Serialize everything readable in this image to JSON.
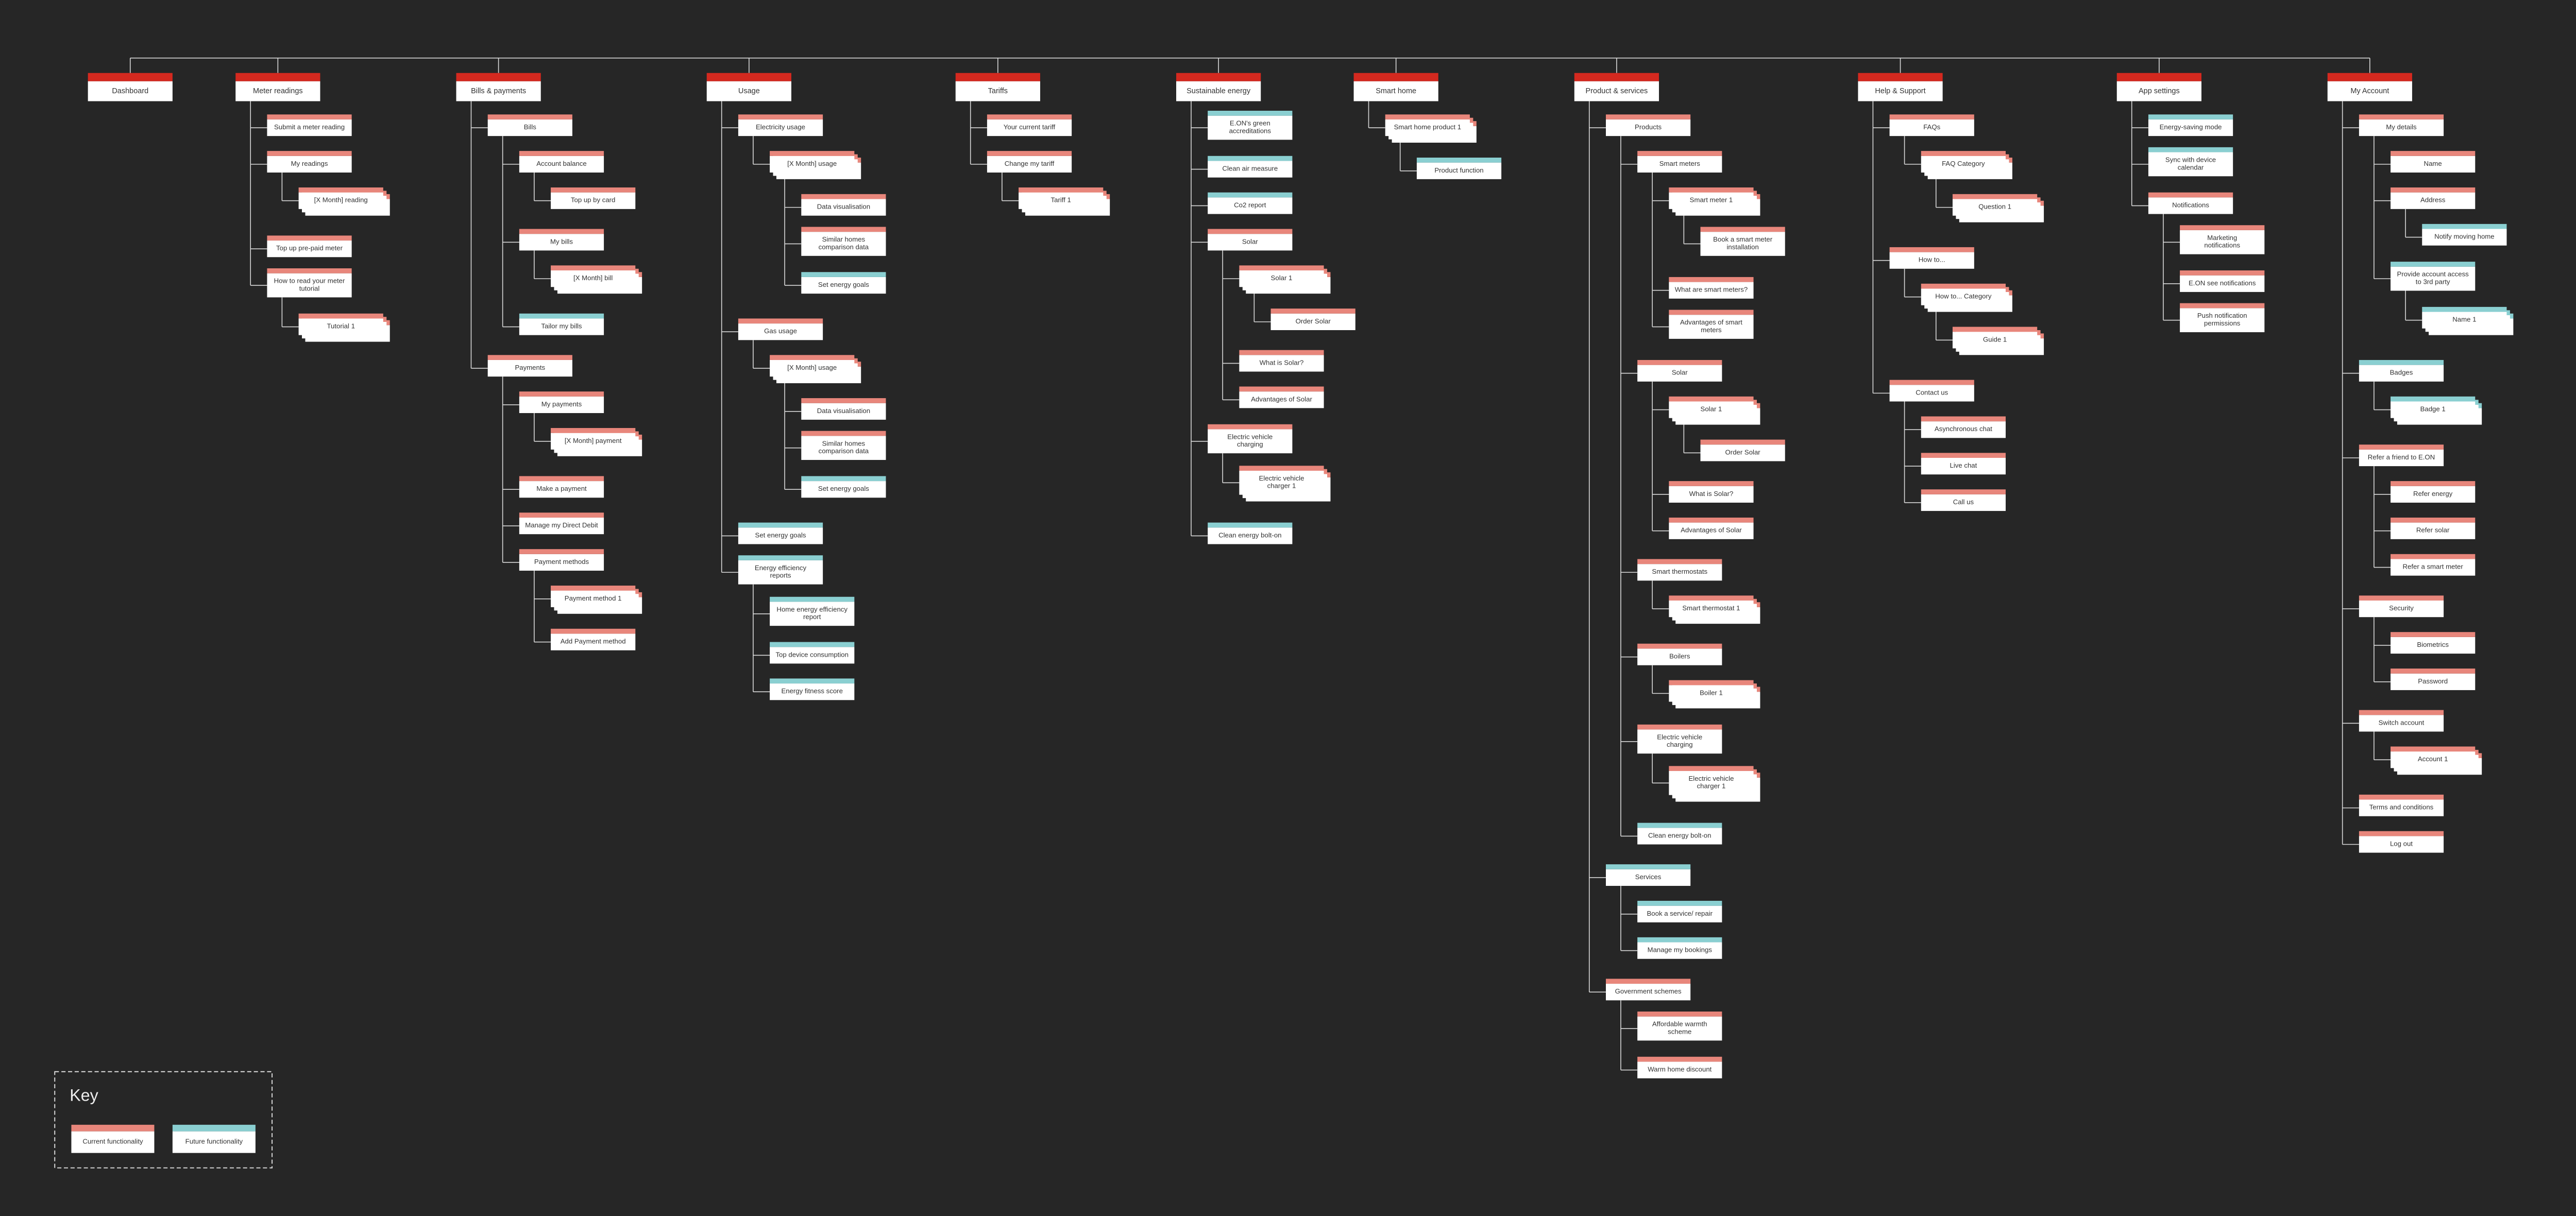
{
  "header_color": "#d4291f",
  "key": {
    "title": "Key",
    "items": [
      {
        "label": "Current functionality",
        "color": "#e8867b"
      },
      {
        "label": "Future functionality",
        "color": "#8acfd1"
      }
    ]
  },
  "tree": [
    {
      "label": "Dashboard"
    },
    {
      "label": "Meter readings",
      "children": [
        {
          "label": "Submit a meter reading"
        },
        {
          "label": "My readings",
          "children": [
            {
              "label": "[X Month] reading",
              "stack": true
            }
          ]
        },
        {
          "label": "Top up pre-paid meter"
        },
        {
          "label": "How to read your meter tutorial",
          "children": [
            {
              "label": "Tutorial 1",
              "stack": true
            }
          ]
        }
      ]
    },
    {
      "label": "Bills & payments",
      "children": [
        {
          "label": "Bills",
          "children": [
            {
              "label": "Account balance",
              "children": [
                {
                  "label": "Top up by card"
                }
              ]
            },
            {
              "label": "My bills",
              "children": [
                {
                  "label": "[X Month] bill",
                  "stack": true
                }
              ]
            },
            {
              "label": "Tailor my bills",
              "key_item": 1
            }
          ]
        },
        {
          "label": "Payments",
          "children": [
            {
              "label": "My payments",
              "children": [
                {
                  "label": "[X Month] payment",
                  "stack": true
                }
              ]
            },
            {
              "label": "Make a payment"
            },
            {
              "label": "Manage my Direct Debit"
            },
            {
              "label": "Payment methods",
              "children": [
                {
                  "label": "Payment method 1",
                  "stack": true
                },
                {
                  "label": "Add Payment method"
                }
              ]
            }
          ]
        }
      ]
    },
    {
      "label": "Usage",
      "children": [
        {
          "label": "Electricity usage",
          "children": [
            {
              "label": "[X Month] usage",
              "stack": true,
              "children": [
                {
                  "label": "Data visualisation"
                },
                {
                  "label": "Similar homes comparison data"
                },
                {
                  "label": "Set energy goals",
                  "key_item": 1
                }
              ]
            }
          ]
        },
        {
          "label": "Gas usage",
          "children": [
            {
              "label": "[X Month] usage",
              "stack": true,
              "children": [
                {
                  "label": "Data visualisation"
                },
                {
                  "label": "Similar homes comparison data"
                },
                {
                  "label": "Set energy goals",
                  "key_item": 1
                }
              ]
            }
          ]
        },
        {
          "label": "Set energy goals",
          "key_item": 1
        },
        {
          "label": "Energy efficiency reports",
          "key_item": 1,
          "children": [
            {
              "label": "Home energy efficiency report",
              "key_item": 1
            },
            {
              "label": "Top device consumption",
              "key_item": 1
            },
            {
              "label": "Energy fitness score",
              "key_item": 1
            }
          ]
        }
      ]
    },
    {
      "label": "Tariffs",
      "children": [
        {
          "label": "Your current tariff"
        },
        {
          "label": "Change my tariff",
          "children": [
            {
              "label": "Tariff 1",
              "stack": true
            }
          ]
        }
      ]
    },
    {
      "label": "Sustainable energy",
      "children": [
        {
          "label": "E.ON's green accreditations",
          "key_item": 1
        },
        {
          "label": "Clean air measure",
          "key_item": 1
        },
        {
          "label": "Co2 report",
          "key_item": 1
        },
        {
          "label": "Solar",
          "children": [
            {
              "label": "Solar 1",
              "stack": true,
              "children": [
                {
                  "label": "Order Solar"
                }
              ]
            },
            {
              "label": "What is Solar?"
            },
            {
              "label": "Advantages of Solar"
            }
          ]
        },
        {
          "label": "Electric vehicle charging",
          "children": [
            {
              "label": "Electric vehicle charger 1",
              "stack": true
            }
          ]
        },
        {
          "label": "Clean energy bolt-on",
          "key_item": 1
        }
      ]
    },
    {
      "label": "Smart home",
      "children": [
        {
          "label": "Smart home product 1",
          "stack": true,
          "children": [
            {
              "label": "Product function",
              "key_item": 1
            }
          ]
        }
      ]
    },
    {
      "label": "Product & services",
      "children": [
        {
          "label": "Products",
          "children": [
            {
              "label": "Smart meters",
              "children": [
                {
                  "label": "Smart meter 1",
                  "stack": true,
                  "children": [
                    {
                      "label": "Book a smart meter installation"
                    }
                  ]
                },
                {
                  "label": "What are smart meters?"
                },
                {
                  "label": "Advantages of smart meters"
                }
              ]
            },
            {
              "label": "Solar",
              "children": [
                {
                  "label": "Solar 1",
                  "stack": true,
                  "children": [
                    {
                      "label": "Order Solar"
                    }
                  ]
                },
                {
                  "label": "What is Solar?"
                },
                {
                  "label": "Advantages of Solar"
                }
              ]
            },
            {
              "label": "Smart thermostats",
              "children": [
                {
                  "label": "Smart thermostat 1",
                  "stack": true
                }
              ]
            },
            {
              "label": "Boilers",
              "children": [
                {
                  "label": "Boiler 1",
                  "stack": true
                }
              ]
            },
            {
              "label": "Electric vehicle charging",
              "children": [
                {
                  "label": "Electric vehicle charger 1",
                  "stack": true
                }
              ]
            },
            {
              "label": "Clean energy bolt-on",
              "key_item": 1
            }
          ]
        },
        {
          "label": "Services",
          "key_item": 1,
          "children": [
            {
              "label": "Book a service/ repair",
              "key_item": 1
            },
            {
              "label": "Manage my bookings",
              "key_item": 1
            }
          ]
        },
        {
          "label": "Government schemes",
          "children": [
            {
              "label": "Affordable warmth scheme"
            },
            {
              "label": "Warm home discount"
            }
          ]
        }
      ]
    },
    {
      "label": "Help & Support",
      "children": [
        {
          "label": "FAQs",
          "children": [
            {
              "label": "FAQ Category",
              "stack": true,
              "children": [
                {
                  "label": "Question 1",
                  "stack": true
                }
              ]
            }
          ]
        },
        {
          "label": "How to...",
          "children": [
            {
              "label": "How to... Category",
              "stack": true,
              "children": [
                {
                  "label": "Guide 1",
                  "stack": true
                }
              ]
            }
          ]
        },
        {
          "label": "Contact us",
          "children": [
            {
              "label": "Asynchronous chat"
            },
            {
              "label": "Live chat"
            },
            {
              "label": "Call us"
            }
          ]
        }
      ]
    },
    {
      "label": "App settings",
      "children": [
        {
          "label": "Energy-saving mode",
          "key_item": 1
        },
        {
          "label": "Sync with device calendar",
          "key_item": 1
        },
        {
          "label": "Notifications",
          "children": [
            {
              "label": "Marketing notifications"
            },
            {
              "label": "E.ON see notifications"
            },
            {
              "label": "Push notification permissions"
            }
          ]
        }
      ]
    },
    {
      "label": "My Account",
      "children": [
        {
          "label": "My details",
          "children": [
            {
              "label": "Name"
            },
            {
              "label": "Address",
              "children": [
                {
                  "label": "Notify moving home",
                  "key_item": 1
                }
              ]
            },
            {
              "label": "Provide account access to 3rd party",
              "key_item": 1,
              "children": [
                {
                  "label": "Name 1",
                  "stack": true,
                  "key_item": 1
                }
              ]
            }
          ]
        },
        {
          "label": "Badges",
          "key_item": 1,
          "children": [
            {
              "label": "Badge 1",
              "stack": true,
              "key_item": 1
            }
          ]
        },
        {
          "label": "Refer a friend to E.ON",
          "children": [
            {
              "label": "Refer energy"
            },
            {
              "label": "Refer solar"
            },
            {
              "label": "Refer a smart meter"
            }
          ]
        },
        {
          "label": "Security",
          "children": [
            {
              "label": "Biometrics"
            },
            {
              "label": "Password"
            }
          ]
        },
        {
          "label": "Switch account",
          "children": [
            {
              "label": "Account 1",
              "stack": true
            }
          ]
        },
        {
          "label": "Terms and conditions"
        },
        {
          "label": "Log out"
        }
      ]
    }
  ]
}
